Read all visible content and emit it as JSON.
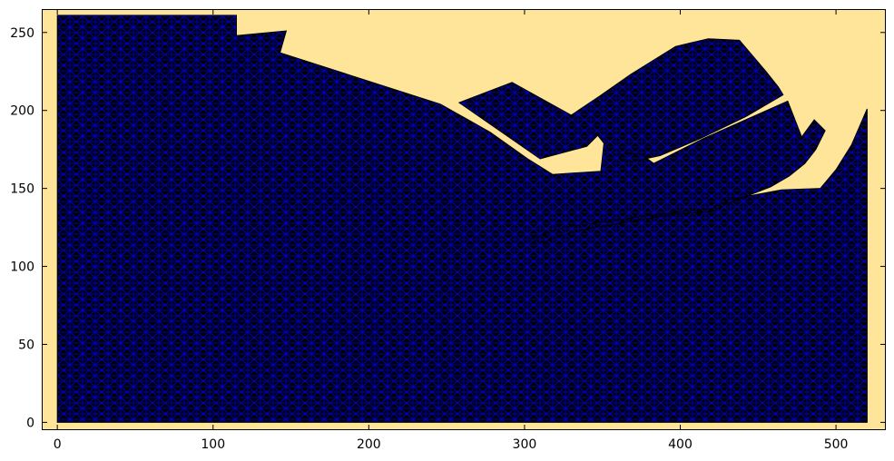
{
  "chart_data": {
    "type": "triangular-mesh",
    "title": "",
    "xlabel": "",
    "ylabel": "",
    "xlim": [
      -10,
      532
    ],
    "ylim": [
      -5,
      265
    ],
    "xticks": [
      0,
      100,
      200,
      300,
      400,
      500
    ],
    "yticks": [
      0,
      50,
      100,
      150,
      200,
      250
    ],
    "background_color": "#ffe599",
    "mesh_fill_color": "#000000",
    "mesh_edge_color": "#0000ff",
    "grid": false,
    "legend": "none",
    "domain_outline": [
      [
        0,
        0
      ],
      [
        520,
        0
      ],
      [
        520,
        201
      ],
      [
        510,
        178
      ],
      [
        500,
        162
      ],
      [
        490,
        150
      ],
      [
        465,
        149
      ],
      [
        432,
        143
      ],
      [
        420,
        137
      ],
      [
        400,
        135
      ],
      [
        375,
        132
      ],
      [
        325,
        125
      ],
      [
        305,
        118
      ],
      [
        310,
        115
      ],
      [
        325,
        120
      ],
      [
        340,
        124
      ],
      [
        375,
        130
      ],
      [
        400,
        134
      ],
      [
        420,
        135
      ],
      [
        432,
        141
      ],
      [
        458,
        151
      ],
      [
        470,
        158
      ],
      [
        480,
        166
      ],
      [
        487,
        175
      ],
      [
        493,
        187
      ],
      [
        486,
        194
      ],
      [
        478,
        183
      ],
      [
        469,
        206
      ],
      [
        442,
        194
      ],
      [
        415,
        182
      ],
      [
        383,
        166
      ],
      [
        375,
        172
      ],
      [
        365,
        173
      ],
      [
        361,
        169
      ],
      [
        368,
        167
      ],
      [
        387,
        171
      ],
      [
        413,
        182
      ],
      [
        442,
        196
      ],
      [
        466,
        210
      ],
      [
        463,
        215
      ],
      [
        455,
        225
      ],
      [
        438,
        245
      ],
      [
        418,
        246
      ],
      [
        397,
        241
      ],
      [
        368,
        223
      ],
      [
        348,
        209
      ],
      [
        330,
        197
      ],
      [
        292,
        218
      ],
      [
        258,
        205
      ],
      [
        310,
        169
      ],
      [
        340,
        177
      ],
      [
        347,
        184
      ],
      [
        351,
        179
      ],
      [
        349,
        161
      ],
      [
        318,
        159
      ],
      [
        302,
        169
      ],
      [
        278,
        186
      ],
      [
        246,
        204
      ],
      [
        143,
        237
      ],
      [
        147,
        251
      ],
      [
        115,
        248
      ],
      [
        115,
        261
      ],
      [
        0,
        261
      ]
    ]
  }
}
